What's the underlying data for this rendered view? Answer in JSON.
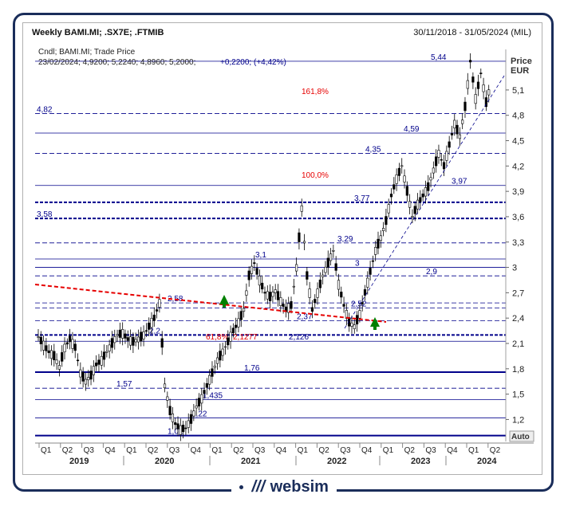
{
  "header": {
    "title": "Weekly BAMI.MI; .SX7E; .FTMIB",
    "date_range": "30/11/2018 - 31/05/2024 (MIL)"
  },
  "legend": {
    "line1": "Cndl; BAMI.MI; Trade Price",
    "line2_values": "23/02/2024; 4,9200; 5,2240; 4,8960; 5,2000;",
    "line2_change": "+0,2200; (+4,42%)"
  },
  "axis": {
    "price_label": "Price",
    "currency_label": "EUR",
    "auto_label": "Auto"
  },
  "footer": {
    "brand": "websim"
  },
  "colors": {
    "navy": "#00008b",
    "red": "#e60000",
    "green": "#008000",
    "border": "#1a2d5a"
  },
  "chart_data": {
    "type": "candlestick",
    "title": "Weekly BAMI.MI; .SX7E; .FTMIB",
    "ylabel": "Price EUR",
    "ylim": [
      0.94,
      5.58
    ],
    "y_ticks": [
      "5,1",
      "4,8",
      "4,5",
      "4,2",
      "3,9",
      "3,6",
      "3,3",
      "3",
      "2,7",
      "2,4",
      "2,1",
      "1,8",
      "1,5",
      "1,2"
    ],
    "y_tick_values": [
      5.1,
      4.8,
      4.5,
      4.2,
      3.9,
      3.6,
      3.3,
      3.0,
      2.7,
      2.4,
      2.1,
      1.8,
      1.5,
      1.2
    ],
    "x_quarters": [
      "Q1",
      "Q2",
      "Q3",
      "Q4",
      "Q1",
      "Q2",
      "Q3",
      "Q4",
      "Q1",
      "Q2",
      "Q3",
      "Q4",
      "Q1",
      "Q2",
      "Q3",
      "Q4",
      "Q1",
      "Q2",
      "Q3",
      "Q4",
      "Q1",
      "Q2"
    ],
    "x_years": [
      "2019",
      "2020",
      "2021",
      "2022",
      "2023",
      "2024"
    ],
    "horizontal_levels": [
      {
        "label": "5,44",
        "value": 5.44,
        "style": "solid"
      },
      {
        "label": "4,82",
        "value": 4.82,
        "style": "dashed"
      },
      {
        "label": "4,59",
        "value": 4.59,
        "style": "solid"
      },
      {
        "label": "4,35",
        "value": 4.35,
        "style": "dashed"
      },
      {
        "label": "3,97",
        "value": 3.97,
        "style": "solid"
      },
      {
        "label": "3,77",
        "value": 3.77,
        "style": "bold-dashed"
      },
      {
        "label": "3,58",
        "value": 3.58,
        "style": "bold-dashed"
      },
      {
        "label": "3,29",
        "value": 3.29,
        "style": "dashed"
      },
      {
        "label": "3,1",
        "value": 3.1,
        "style": "solid"
      },
      {
        "label": "3",
        "value": 3.0,
        "style": "solid"
      },
      {
        "label": "2,9",
        "value": 2.9,
        "style": "dashed"
      },
      {
        "label": "2,58",
        "value": 2.58,
        "style": "dashed"
      },
      {
        "label": "2,52",
        "value": 2.52,
        "style": "dashed"
      },
      {
        "label": "2,37",
        "value": 2.37,
        "style": "dashed"
      },
      {
        "label": "2,2",
        "value": 2.2,
        "style": "bold-dashed"
      },
      {
        "label": "2,126",
        "value": 2.126,
        "style": "solid"
      },
      {
        "label": "1,76",
        "value": 1.76,
        "style": "bold-solid"
      },
      {
        "label": "1,57",
        "value": 1.57,
        "style": "dashed"
      },
      {
        "label": "1,435",
        "value": 1.435,
        "style": "solid"
      },
      {
        "label": "1,22",
        "value": 1.22,
        "style": "solid"
      },
      {
        "label": "1,01",
        "value": 1.01,
        "style": "bold-solid"
      }
    ],
    "fibonacci_labels": [
      {
        "label": "161,8%",
        "value": 5.4
      },
      {
        "label": "100,0%",
        "value": 4.0
      },
      {
        "label": "61,8%",
        "value": 2.1277
      },
      {
        "label": "2,1277",
        "value": 2.1277
      }
    ],
    "current_close": "5,2000",
    "series_path": [
      [
        0,
        2.18
      ],
      [
        2,
        2.08
      ],
      [
        4,
        2.0
      ],
      [
        6,
        1.95
      ],
      [
        8,
        1.82
      ],
      [
        10,
        2.05
      ],
      [
        12,
        2.15
      ],
      [
        14,
        2.05
      ],
      [
        16,
        1.75
      ],
      [
        18,
        1.65
      ],
      [
        20,
        1.72
      ],
      [
        22,
        1.85
      ],
      [
        24,
        1.9
      ],
      [
        26,
        2.0
      ],
      [
        28,
        2.1
      ],
      [
        30,
        2.2
      ],
      [
        32,
        2.22
      ],
      [
        34,
        2.15
      ],
      [
        36,
        2.12
      ],
      [
        38,
        2.15
      ],
      [
        40,
        2.2
      ],
      [
        42,
        2.3
      ],
      [
        44,
        2.4
      ],
      [
        46,
        2.58
      ],
      [
        47,
        2.1
      ],
      [
        48,
        1.6
      ],
      [
        50,
        1.3
      ],
      [
        52,
        1.15
      ],
      [
        54,
        1.08
      ],
      [
        56,
        1.1
      ],
      [
        58,
        1.2
      ],
      [
        60,
        1.35
      ],
      [
        62,
        1.45
      ],
      [
        64,
        1.6
      ],
      [
        66,
        1.75
      ],
      [
        68,
        1.9
      ],
      [
        70,
        2.0
      ],
      [
        72,
        2.12
      ],
      [
        74,
        2.25
      ],
      [
        76,
        2.35
      ],
      [
        78,
        2.5
      ],
      [
        80,
        2.9
      ],
      [
        82,
        3.05
      ],
      [
        84,
        2.85
      ],
      [
        86,
        2.7
      ],
      [
        88,
        2.65
      ],
      [
        90,
        2.72
      ],
      [
        92,
        2.6
      ],
      [
        94,
        2.5
      ],
      [
        96,
        2.55
      ],
      [
        98,
        3.0
      ],
      [
        100,
        3.7
      ],
      [
        102,
        2.9
      ],
      [
        104,
        2.5
      ],
      [
        106,
        2.7
      ],
      [
        108,
        2.9
      ],
      [
        110,
        3.05
      ],
      [
        112,
        3.2
      ],
      [
        114,
        2.8
      ],
      [
        116,
        2.55
      ],
      [
        118,
        2.35
      ],
      [
        120,
        2.3
      ],
      [
        122,
        2.45
      ],
      [
        124,
        2.7
      ],
      [
        126,
        2.95
      ],
      [
        128,
        3.2
      ],
      [
        130,
        3.35
      ],
      [
        132,
        3.55
      ],
      [
        134,
        3.85
      ],
      [
        136,
        4.05
      ],
      [
        138,
        4.2
      ],
      [
        140,
        3.9
      ],
      [
        142,
        3.6
      ],
      [
        144,
        3.75
      ],
      [
        146,
        3.85
      ],
      [
        148,
        3.95
      ],
      [
        150,
        4.15
      ],
      [
        152,
        4.35
      ],
      [
        154,
        4.2
      ],
      [
        156,
        4.45
      ],
      [
        158,
        4.7
      ],
      [
        160,
        4.55
      ],
      [
        162,
        4.9
      ],
      [
        164,
        5.44
      ],
      [
        166,
        5.0
      ],
      [
        168,
        5.3
      ],
      [
        170,
        4.95
      ],
      [
        172,
        5.2
      ]
    ]
  }
}
